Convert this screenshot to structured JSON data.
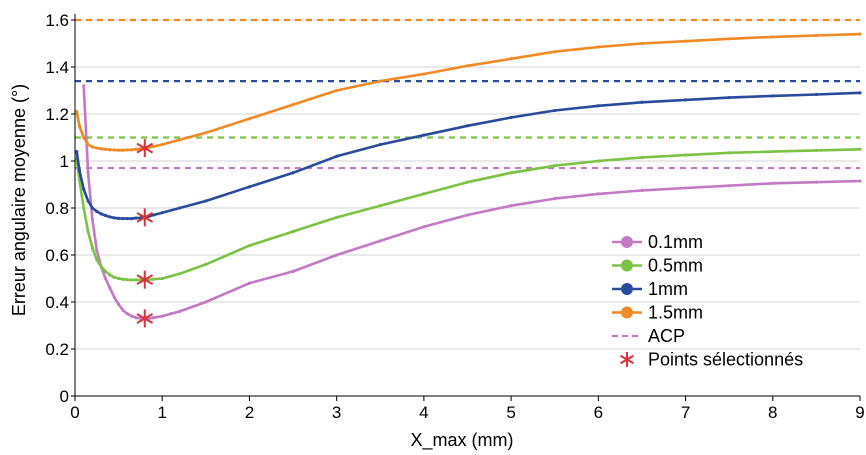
{
  "chart_data": {
    "type": "line",
    "xlabel": "X_max (mm)",
    "ylabel": "Erreur angulaire moyenne (°)",
    "xlim": [
      0,
      9
    ],
    "ylim": [
      0,
      1.6
    ],
    "x_ticks": [
      0,
      1,
      2,
      3,
      4,
      5,
      6,
      7,
      8,
      9
    ],
    "y_ticks": [
      0,
      0.2,
      0.4,
      0.6,
      0.8,
      1,
      1.2,
      1.4,
      1.6
    ],
    "x_tick_labels": [
      "0",
      "1",
      "2",
      "3",
      "4",
      "5",
      "6",
      "7",
      "8",
      "9"
    ],
    "y_tick_labels": [
      "0",
      "0.2",
      "0.4",
      "0.6",
      "0.8",
      "1",
      "1.2",
      "1.4",
      "1.6"
    ],
    "grid": "horizontal",
    "legend_position": "bottom-right",
    "series": [
      {
        "name": "0.1mm",
        "color": "#c27ac4",
        "x": [
          0.1,
          0.15,
          0.2,
          0.25,
          0.3,
          0.35,
          0.4,
          0.45,
          0.5,
          0.55,
          0.6,
          0.65,
          0.7,
          0.75,
          0.8,
          0.85,
          0.9,
          1.0,
          1.1,
          1.2,
          1.5,
          2.0,
          2.5,
          3.0,
          3.5,
          4.0,
          4.5,
          5.0,
          5.5,
          6.0,
          6.5,
          7.0,
          7.5,
          8.0,
          8.5,
          9.0
        ],
        "y": [
          1.32,
          0.95,
          0.75,
          0.62,
          0.55,
          0.5,
          0.46,
          0.42,
          0.39,
          0.365,
          0.35,
          0.34,
          0.333,
          0.33,
          0.33,
          0.33,
          0.333,
          0.34,
          0.35,
          0.36,
          0.4,
          0.48,
          0.53,
          0.6,
          0.66,
          0.72,
          0.77,
          0.81,
          0.84,
          0.86,
          0.875,
          0.885,
          0.895,
          0.905,
          0.91,
          0.915
        ]
      },
      {
        "name": "0.5mm",
        "color": "#7cc244",
        "x": [
          0.02,
          0.05,
          0.1,
          0.15,
          0.2,
          0.25,
          0.3,
          0.35,
          0.4,
          0.45,
          0.5,
          0.55,
          0.6,
          0.65,
          0.7,
          0.75,
          0.8,
          0.85,
          0.9,
          1.0,
          1.2,
          1.5,
          2.0,
          2.5,
          3.0,
          3.5,
          4.0,
          4.5,
          5.0,
          5.5,
          6.0,
          6.5,
          7.0,
          7.5,
          8.0,
          8.5,
          9.0
        ],
        "y": [
          1.01,
          0.92,
          0.8,
          0.7,
          0.63,
          0.58,
          0.55,
          0.53,
          0.515,
          0.505,
          0.5,
          0.497,
          0.495,
          0.494,
          0.494,
          0.494,
          0.495,
          0.495,
          0.497,
          0.5,
          0.52,
          0.56,
          0.64,
          0.7,
          0.76,
          0.81,
          0.86,
          0.91,
          0.95,
          0.98,
          1.0,
          1.015,
          1.025,
          1.035,
          1.04,
          1.045,
          1.05
        ]
      },
      {
        "name": "1mm",
        "color": "#2a4b9b",
        "x": [
          0.02,
          0.05,
          0.1,
          0.15,
          0.2,
          0.25,
          0.3,
          0.35,
          0.4,
          0.45,
          0.5,
          0.55,
          0.6,
          0.65,
          0.7,
          0.75,
          0.8,
          0.85,
          0.9,
          1.0,
          1.2,
          1.5,
          2.0,
          2.5,
          3.0,
          3.5,
          4.0,
          4.5,
          5.0,
          5.5,
          6.0,
          6.5,
          7.0,
          7.5,
          8.0,
          8.5,
          9.0
        ],
        "y": [
          1.04,
          0.96,
          0.88,
          0.83,
          0.8,
          0.785,
          0.775,
          0.768,
          0.762,
          0.758,
          0.756,
          0.755,
          0.755,
          0.755,
          0.757,
          0.758,
          0.76,
          0.765,
          0.77,
          0.78,
          0.8,
          0.83,
          0.89,
          0.95,
          1.02,
          1.07,
          1.11,
          1.15,
          1.185,
          1.215,
          1.235,
          1.25,
          1.26,
          1.27,
          1.277,
          1.283,
          1.29
        ]
      },
      {
        "name": "1.5mm",
        "color": "#f08a24",
        "x": [
          0.02,
          0.05,
          0.1,
          0.15,
          0.2,
          0.25,
          0.3,
          0.35,
          0.4,
          0.45,
          0.5,
          0.55,
          0.6,
          0.65,
          0.7,
          0.75,
          0.8,
          0.85,
          0.9,
          1.0,
          1.2,
          1.5,
          2.0,
          2.5,
          3.0,
          3.5,
          4.0,
          4.5,
          5.0,
          5.5,
          6.0,
          6.5,
          7.0,
          7.5,
          8.0,
          8.5,
          9.0
        ],
        "y": [
          1.21,
          1.15,
          1.1,
          1.07,
          1.06,
          1.055,
          1.052,
          1.05,
          1.048,
          1.047,
          1.046,
          1.046,
          1.047,
          1.048,
          1.05,
          1.052,
          1.055,
          1.058,
          1.062,
          1.07,
          1.09,
          1.12,
          1.18,
          1.24,
          1.3,
          1.34,
          1.37,
          1.405,
          1.435,
          1.465,
          1.485,
          1.5,
          1.51,
          1.52,
          1.528,
          1.534,
          1.54
        ]
      }
    ],
    "reference_lines": [
      {
        "name": "0.1mm ACP",
        "color": "#c27ac4",
        "y": 0.97
      },
      {
        "name": "0.5mm ACP",
        "color": "#7cc244",
        "y": 1.1
      },
      {
        "name": "1mm ACP",
        "color": "#2a4b9b",
        "y": 1.34
      },
      {
        "name": "1.5mm ACP",
        "color": "#f08a24",
        "y": 1.6
      }
    ],
    "selected_points": {
      "color": "#d8333a",
      "points": [
        {
          "x": 0.8,
          "y": 1.055
        },
        {
          "x": 0.8,
          "y": 0.76
        },
        {
          "x": 0.8,
          "y": 0.495
        },
        {
          "x": 0.8,
          "y": 0.33
        }
      ]
    },
    "legend": [
      {
        "label": "0.1mm",
        "kind": "line-marker",
        "color": "#c27ac4"
      },
      {
        "label": "0.5mm",
        "kind": "line-marker",
        "color": "#7cc244"
      },
      {
        "label": "1mm",
        "kind": "line-marker",
        "color": "#2a4b9b"
      },
      {
        "label": "1.5mm",
        "kind": "line-marker",
        "color": "#f08a24"
      },
      {
        "label": "ACP",
        "kind": "dashed",
        "color": "#c27ac4"
      },
      {
        "label": "Points sélectionnés",
        "kind": "star",
        "color": "#d8333a"
      }
    ]
  }
}
